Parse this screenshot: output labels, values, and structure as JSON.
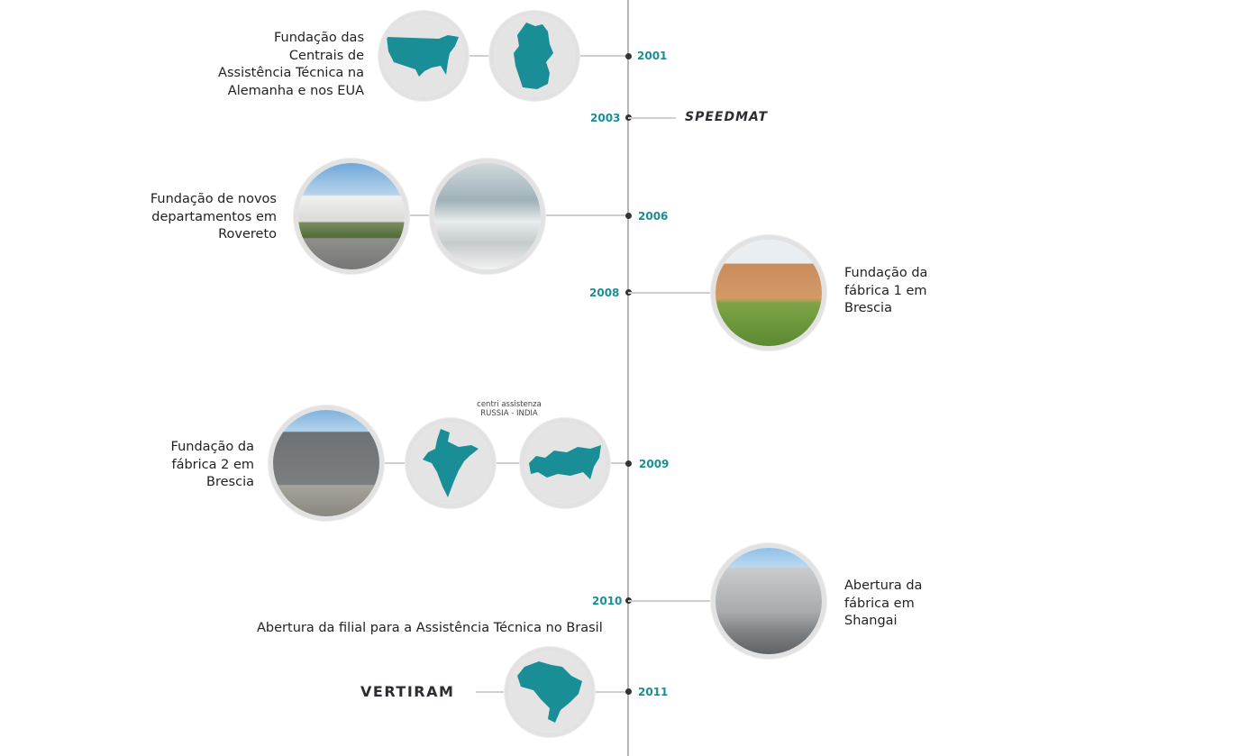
{
  "colors": {
    "accent": "#1a8e96",
    "line": "#b5b5b5",
    "map_bg": "#e4e4e4"
  },
  "events": [
    {
      "year": "2001",
      "text": [
        "Fundação das",
        "Centrais de",
        "Assistência Técnica na",
        "Alemanha e nos EUA"
      ],
      "images": [
        "usa-map",
        "germany-map"
      ]
    },
    {
      "year": "2003",
      "logo": "SPEEDMAT"
    },
    {
      "year": "2006",
      "text": [
        "Fundação de novos",
        "departamentos em",
        "Rovereto"
      ],
      "images": [
        "rovereto-building-photo",
        "machines-photo"
      ]
    },
    {
      "year": "2008",
      "text": [
        "Fundação da",
        "fábrica 1 em",
        "Brescia"
      ],
      "images": [
        "brescia-factory-1-photo"
      ]
    },
    {
      "year": "2009",
      "text": [
        "Fundação da",
        "fábrica 2 em",
        "Brescia"
      ],
      "caption": [
        "centri assistenza",
        "RUSSIA - INDIA"
      ],
      "images": [
        "brescia-factory-2-photo",
        "india-map",
        "russia-map"
      ]
    },
    {
      "year": "2010",
      "text": [
        "Abertura da",
        "fábrica em",
        "Shangai"
      ],
      "images": [
        "shanghai-factory-photo"
      ]
    },
    {
      "year": "2011",
      "text": [
        "Abertura da filial para a Assistência Técnica no Brasil"
      ],
      "logo": "VERTIRAM",
      "images": [
        "brazil-map"
      ]
    }
  ]
}
